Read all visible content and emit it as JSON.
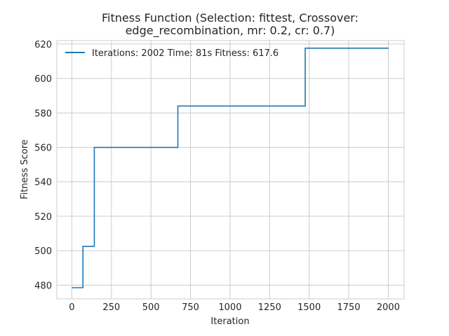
{
  "chart_data": {
    "type": "line",
    "title_lines": [
      "Fitness Function (Selection: fittest, Crossover:",
      "edge_recombination, mr: 0.2, cr: 0.7)"
    ],
    "xlabel": "Iteration",
    "ylabel": "Fitness Score",
    "xlim": [
      -95,
      2100
    ],
    "ylim": [
      472,
      622
    ],
    "x_ticks": [
      0,
      250,
      500,
      750,
      1000,
      1250,
      1500,
      1750,
      2000
    ],
    "y_ticks": [
      480,
      500,
      520,
      540,
      560,
      580,
      600,
      620
    ],
    "grid": true,
    "legend_position": "top-left",
    "series": [
      {
        "name": "Iterations: 2002 Time: 81s Fitness: 617.6",
        "color": "#1f77b4",
        "step": true,
        "points": [
          {
            "x": 0,
            "y": 478.5
          },
          {
            "x": 70,
            "y": 478.5
          },
          {
            "x": 70,
            "y": 502.5
          },
          {
            "x": 142,
            "y": 502.5
          },
          {
            "x": 142,
            "y": 560
          },
          {
            "x": 670,
            "y": 560
          },
          {
            "x": 670,
            "y": 584
          },
          {
            "x": 1475,
            "y": 584
          },
          {
            "x": 1475,
            "y": 617.6
          },
          {
            "x": 2002,
            "y": 617.6
          }
        ]
      }
    ]
  }
}
